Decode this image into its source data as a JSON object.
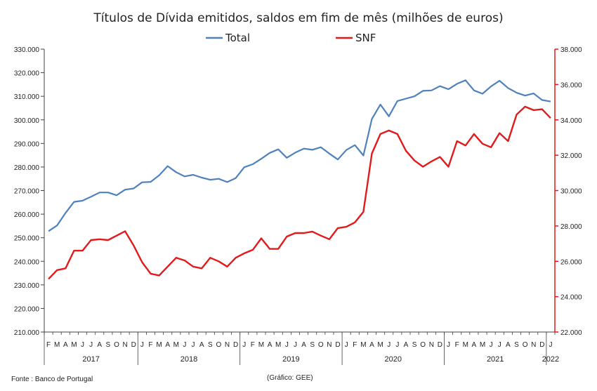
{
  "chart_data": {
    "type": "line",
    "title": "Títulos de Dívida emitidos, saldos em fim de mês  (milhões de euros)",
    "source_note": "Fonte : Banco de Portugal",
    "credit_note": "(Gráfico: GEE)",
    "legend_placement": "top-center",
    "grid": false,
    "colors": {
      "total": "#4f81bd",
      "snf": "#e31a1c",
      "axis": "#404040"
    },
    "x_months": [
      "F",
      "M",
      "A",
      "M",
      "J",
      "J",
      "A",
      "S",
      "O",
      "N",
      "D",
      "J",
      "F",
      "M",
      "A",
      "M",
      "J",
      "J",
      "A",
      "S",
      "O",
      "N",
      "D",
      "J",
      "F",
      "M",
      "A",
      "M",
      "J",
      "J",
      "A",
      "S",
      "O",
      "N",
      "D",
      "J",
      "F",
      "M",
      "A",
      "M",
      "J",
      "J",
      "A",
      "S",
      "O",
      "N",
      "D",
      "J",
      "F",
      "M",
      "A",
      "M",
      "J",
      "J",
      "A",
      "S",
      "O",
      "N",
      "D",
      "J"
    ],
    "years": [
      {
        "label": "2017",
        "start": 0,
        "end": 10
      },
      {
        "label": "2018",
        "start": 11,
        "end": 22
      },
      {
        "label": "2019",
        "start": 23,
        "end": 34
      },
      {
        "label": "2020",
        "start": 35,
        "end": 46
      },
      {
        "label": "2021",
        "start": 47,
        "end": 58
      },
      {
        "label": "2022",
        "start": 59,
        "end": 59
      }
    ],
    "y_left": {
      "min": 210000,
      "max": 330000,
      "step": 10000,
      "ticks": [
        "210.000",
        "220.000",
        "230.000",
        "240.000",
        "250.000",
        "260.000",
        "270.000",
        "280.000",
        "290.000",
        "300.000",
        "310.000",
        "320.000",
        "330.000"
      ]
    },
    "y_right": {
      "min": 22000,
      "max": 38000,
      "step": 2000,
      "ticks": [
        "22.000",
        "24.000",
        "26.000",
        "28.000",
        "30.000",
        "32.000",
        "34.000",
        "36.000",
        "38.000"
      ]
    },
    "series": [
      {
        "name": "Total",
        "axis": "left",
        "values": [
          252800,
          255200,
          260500,
          265200,
          265700,
          267400,
          269200,
          269200,
          268000,
          270400,
          270900,
          273500,
          273700,
          276500,
          280400,
          277800,
          276000,
          276700,
          275500,
          274600,
          275000,
          273600,
          275300,
          279900,
          281200,
          283500,
          286000,
          287500,
          283900,
          286100,
          287800,
          287300,
          288400,
          285700,
          283200,
          287200,
          289300,
          284900,
          300400,
          306500,
          301500,
          308000,
          309000,
          310000,
          312300,
          312500,
          314300,
          313000,
          315300,
          316800,
          312500,
          311100,
          314200,
          316600,
          313500,
          311500,
          310300,
          311200,
          308400,
          307800
        ]
      },
      {
        "name": "SNF",
        "axis": "right",
        "values": [
          25000,
          25500,
          25600,
          26600,
          26600,
          27200,
          27250,
          27200,
          27450,
          27700,
          26900,
          25950,
          25300,
          25200,
          25700,
          26200,
          26050,
          25700,
          25600,
          26200,
          26000,
          25700,
          26200,
          26450,
          26650,
          27300,
          26700,
          26700,
          27400,
          27600,
          27600,
          27680,
          27450,
          27250,
          27880,
          27950,
          28200,
          28800,
          32100,
          33200,
          33400,
          33200,
          32250,
          31700,
          31350,
          31650,
          31900,
          31350,
          32800,
          32550,
          33200,
          32650,
          32450,
          33250,
          32800,
          34300,
          34750,
          34550,
          34600,
          34100
        ]
      }
    ]
  }
}
